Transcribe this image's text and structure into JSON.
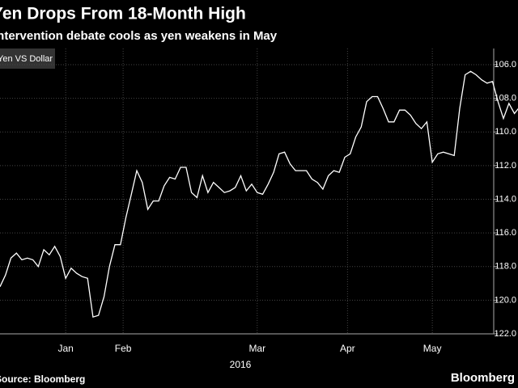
{
  "chart_data": {
    "type": "line",
    "title": "Yen Drops From 18-Month High",
    "subtitle": "Intervention debate cools as yen weakens in May",
    "legend": "Yen VS Dollar",
    "x_label": "2016",
    "source": "Source: Bloomberg",
    "brand": "Bloomberg",
    "color": "#ffffff",
    "grid": true,
    "inverted": true,
    "ylim": [
      106,
      122
    ],
    "yticks": [
      {
        "value": 106,
        "label": "106.0"
      },
      {
        "value": 108,
        "label": "108.0"
      },
      {
        "value": 110,
        "label": "110.0"
      },
      {
        "value": 112,
        "label": "112.0"
      },
      {
        "value": 114,
        "label": "114.0"
      },
      {
        "value": 116,
        "label": "116.0"
      },
      {
        "value": 118,
        "label": "118.0"
      },
      {
        "value": 120,
        "label": "120.0"
      },
      {
        "value": 122,
        "label": "122.0"
      }
    ],
    "xlim": [
      0,
      88
    ],
    "xticks": [
      {
        "value": 12,
        "label": "Jan"
      },
      {
        "value": 22.5,
        "label": "Feb"
      },
      {
        "value": 47,
        "label": "Mar"
      },
      {
        "value": 63.5,
        "label": "Apr"
      },
      {
        "value": 79,
        "label": "May"
      }
    ],
    "values": [
      119.2,
      118.5,
      117.5,
      117.2,
      117.6,
      117.5,
      117.6,
      118.0,
      117.0,
      117.3,
      116.8,
      117.4,
      118.7,
      118.1,
      118.4,
      118.6,
      118.7,
      121.0,
      120.9,
      119.8,
      118.0,
      116.7,
      116.7,
      115.1,
      113.7,
      112.3,
      113.0,
      114.6,
      114.1,
      114.1,
      113.2,
      112.7,
      112.8,
      112.1,
      112.1,
      113.6,
      113.9,
      112.6,
      113.6,
      113.0,
      113.3,
      113.6,
      113.5,
      113.3,
      112.6,
      113.5,
      113.1,
      113.6,
      113.7,
      113.1,
      112.4,
      111.3,
      111.2,
      111.9,
      112.3,
      112.3,
      112.3,
      112.8,
      113.0,
      113.4,
      112.6,
      112.3,
      112.4,
      111.5,
      111.3,
      110.3,
      109.7,
      108.2,
      107.9,
      107.9,
      108.6,
      109.4,
      109.4,
      108.7,
      108.7,
      109.0,
      109.5,
      109.8,
      109.4,
      111.8,
      111.3,
      111.2,
      111.3,
      111.4,
      108.6,
      106.6,
      106.4,
      106.6,
      106.9,
      107.1,
      107.0,
      108.2,
      109.2,
      108.3,
      108.9,
      108.5,
      109.0,
      108.9
    ]
  }
}
